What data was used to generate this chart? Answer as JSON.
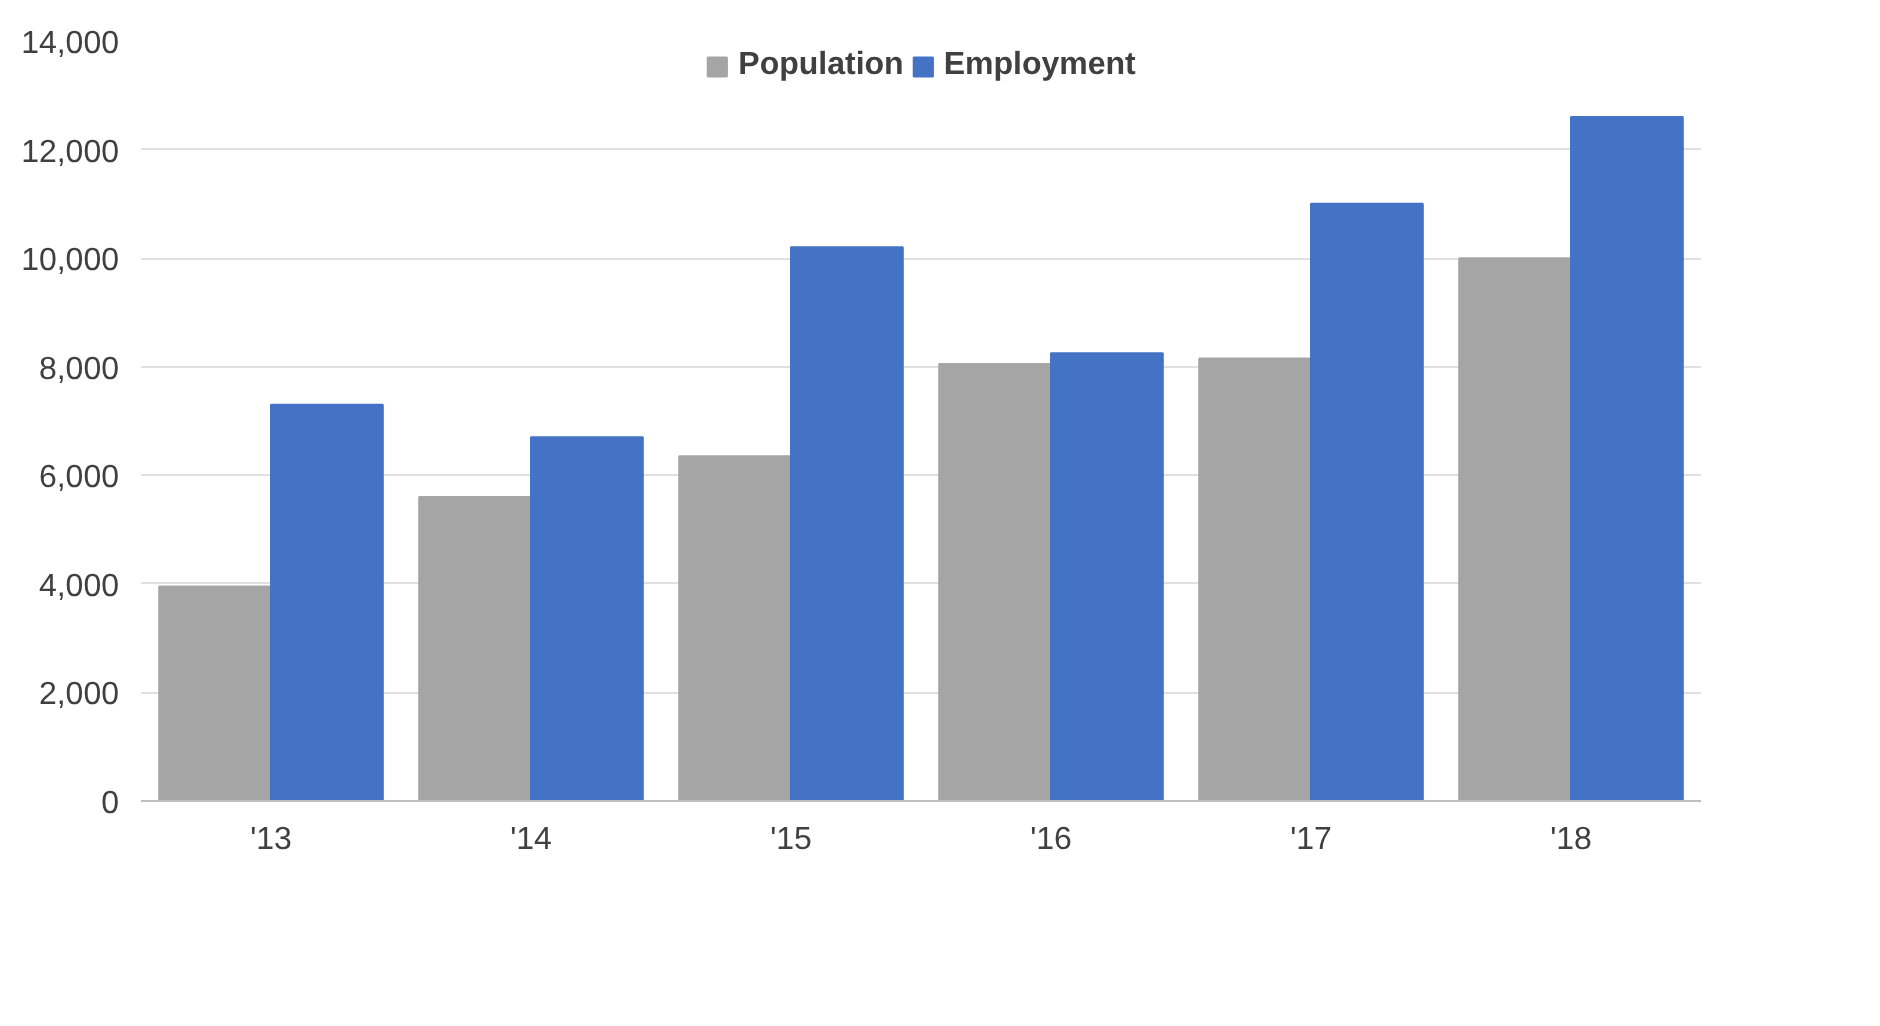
{
  "chart_data": {
    "type": "bar",
    "categories": [
      "'13",
      "'14",
      "'15",
      "'16",
      "'17",
      "'18"
    ],
    "series": [
      {
        "name": "Population",
        "color": "#a5a5a5",
        "values": [
          3950,
          5600,
          6350,
          8050,
          8150,
          10000
        ]
      },
      {
        "name": "Employment",
        "color": "#4472c4",
        "values": [
          7300,
          6700,
          10200,
          8250,
          11000,
          12600
        ]
      }
    ],
    "ylim": [
      0,
      14000
    ],
    "yticks": [
      0,
      {
        "value": 2000,
        "label": "2,000"
      },
      {
        "value": 4000,
        "label": "4,000"
      },
      {
        "value": 6000,
        "label": "6,000"
      },
      {
        "value": 8000,
        "label": "8,000"
      },
      {
        "value": 10000,
        "label": "10,000"
      },
      {
        "value": 12000,
        "label": "12,000"
      },
      {
        "value": 14000,
        "label": "14,000"
      }
    ],
    "grid": "y",
    "legend": "top"
  }
}
